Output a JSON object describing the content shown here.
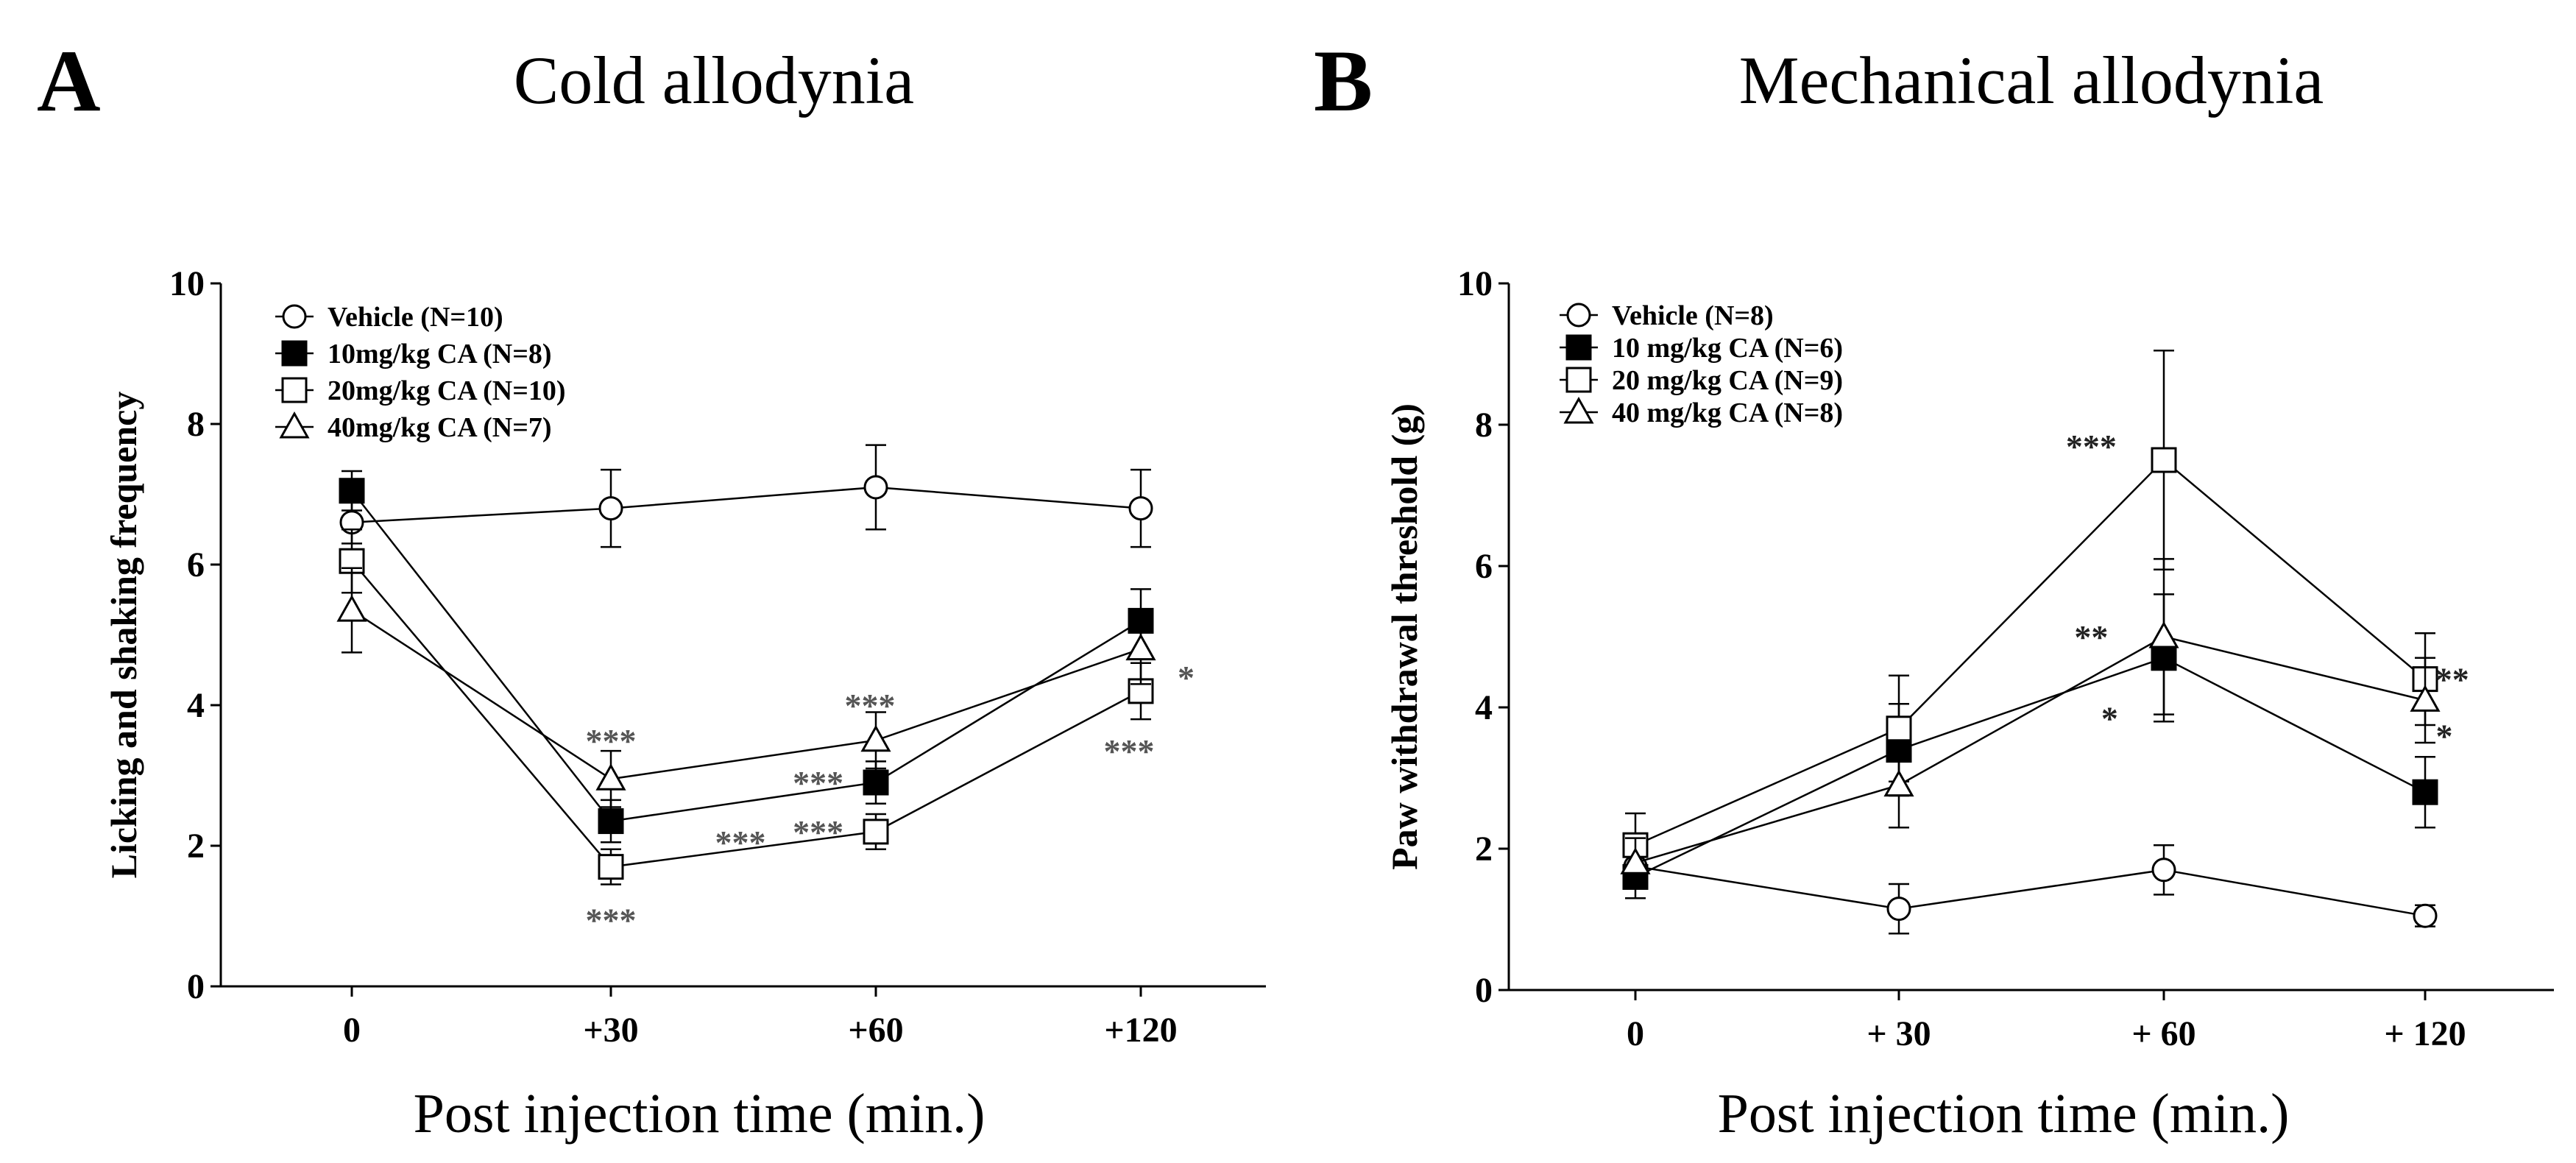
{
  "chart_data": [
    {
      "type": "line",
      "panel_letter": "A",
      "title": "Cold allodynia",
      "xlabel": "Post injection time (min.)",
      "ylabel": "Licking and shaking frequency",
      "categories": [
        "0",
        "+30",
        "+60",
        "+120"
      ],
      "ylim": [
        0,
        10
      ],
      "yticks": [
        0,
        2,
        4,
        6,
        8,
        10
      ],
      "legend_position": "top-left",
      "grid": false,
      "series": [
        {
          "name": "Vehicle (N=10)",
          "marker": "circle-open",
          "values": [
            6.6,
            6.8,
            7.1,
            6.8
          ],
          "errors": [
            0.3,
            0.55,
            0.6,
            0.55
          ]
        },
        {
          "name": "10mg/kg CA (N=8)",
          "marker": "square-filled",
          "values": [
            7.05,
            2.35,
            2.9,
            5.2
          ],
          "errors": [
            0.28,
            0.3,
            0.3,
            0.45
          ]
        },
        {
          "name": "20mg/kg CA (N=10)",
          "marker": "square-open",
          "values": [
            6.05,
            1.7,
            2.2,
            4.2
          ],
          "errors": [
            0.45,
            0.25,
            0.25,
            0.4
          ]
        },
        {
          "name": "40mg/kg CA (N=7)",
          "marker": "triangle-open",
          "values": [
            5.35,
            2.95,
            3.5,
            4.8
          ],
          "errors": [
            0.6,
            0.4,
            0.4,
            0.5
          ]
        }
      ],
      "annotations": [
        {
          "text": "***",
          "x": 1,
          "y": 3.5
        },
        {
          "text": "***",
          "x": 1.5,
          "y": 2.05
        },
        {
          "text": "***",
          "x": 1,
          "y": 0.95
        },
        {
          "text": "***",
          "x": 2,
          "y": 4.0
        },
        {
          "text": "***",
          "x": 1.8,
          "y": 2.9
        },
        {
          "text": "***",
          "x": 1.8,
          "y": 2.2
        },
        {
          "text": "*",
          "x": 3.22,
          "y": 4.4
        },
        {
          "text": "***",
          "x": 3,
          "y": 3.35
        }
      ]
    },
    {
      "type": "line",
      "panel_letter": "B",
      "title": "Mechanical allodynia",
      "xlabel": "Post injection time (min.)",
      "ylabel": "Paw withdrawal threshold (g)",
      "categories": [
        "0",
        "+ 30",
        "+ 60",
        "+ 120"
      ],
      "ylim": [
        0,
        10
      ],
      "yticks": [
        0,
        2,
        4,
        6,
        8,
        10
      ],
      "legend_position": "top-left",
      "grid": false,
      "series": [
        {
          "name": "Vehicle (N=8)",
          "marker": "circle-open",
          "values": [
            1.75,
            1.15,
            1.7,
            1.05
          ],
          "errors": [
            0.3,
            0.35,
            0.35,
            0.15
          ]
        },
        {
          "name": "10 mg/kg CA (N=6)",
          "marker": "square-filled",
          "values": [
            1.6,
            3.4,
            4.7,
            2.8
          ],
          "errors": [
            0.3,
            0.65,
            0.9,
            0.5
          ]
        },
        {
          "name": "20 mg/kg CA (N=9)",
          "marker": "square-open",
          "values": [
            2.05,
            3.7,
            7.5,
            4.4
          ],
          "errors": [
            0.45,
            0.75,
            1.55,
            0.65
          ]
        },
        {
          "name": "40 mg/kg CA (N=8)",
          "marker": "triangle-open",
          "values": [
            1.8,
            2.9,
            5.0,
            4.1
          ],
          "errors": [
            0.35,
            0.6,
            1.1,
            0.6
          ]
        }
      ],
      "annotations": [
        {
          "text": "***",
          "x": 1.73,
          "y": 7.7
        },
        {
          "text": "**",
          "x": 1.73,
          "y": 5.0
        },
        {
          "text": "*",
          "x": 1.8,
          "y": 3.85
        },
        {
          "text": "**",
          "x": 3.1,
          "y": 4.4
        },
        {
          "text": "*",
          "x": 3.07,
          "y": 3.6
        }
      ]
    }
  ]
}
